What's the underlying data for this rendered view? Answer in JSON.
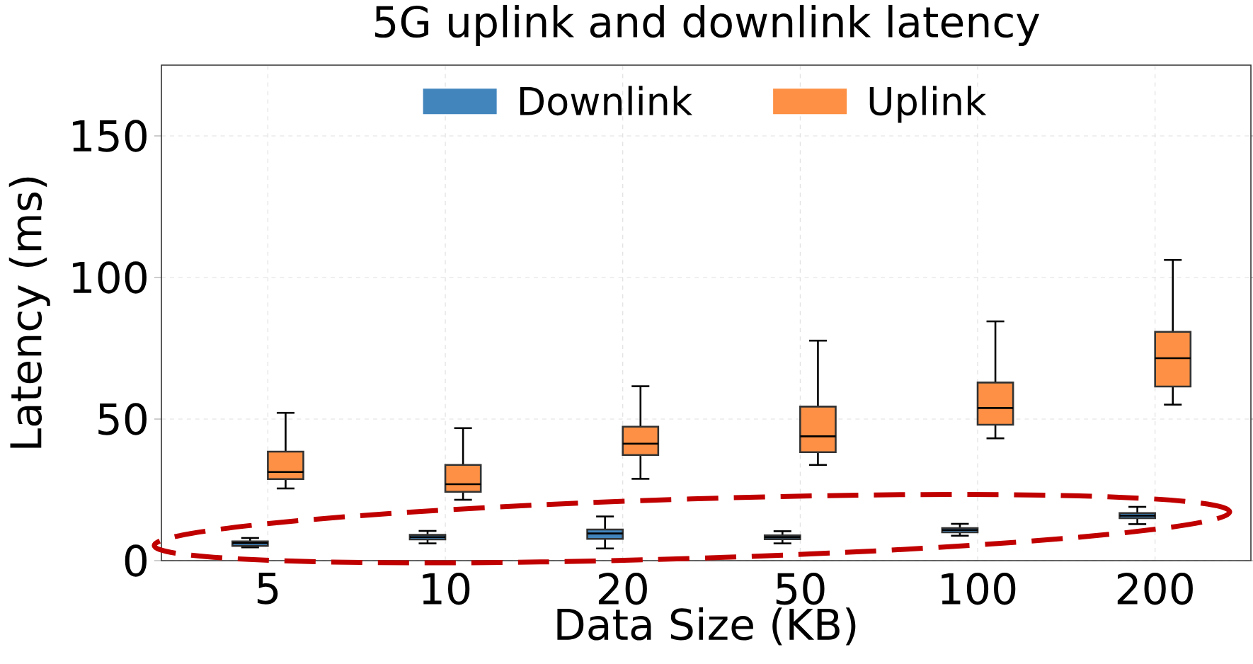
{
  "chart_data": {
    "type": "box",
    "title": "5G uplink and downlink latency",
    "xlabel": "Data Size (KB)",
    "ylabel": "Latency (ms)",
    "categories": [
      "5",
      "10",
      "20",
      "50",
      "100",
      "200"
    ],
    "series": [
      {
        "name": "Downlink",
        "color": "#4285bd",
        "boxes": [
          {
            "low": 4.7,
            "q1": 5.2,
            "median": 6.2,
            "q3": 6.8,
            "high": 8.0
          },
          {
            "low": 6.1,
            "q1": 7.5,
            "median": 8.3,
            "q3": 9.1,
            "high": 10.5
          },
          {
            "low": 4.3,
            "q1": 7.7,
            "median": 9.6,
            "q3": 11.0,
            "high": 15.6
          },
          {
            "low": 6.1,
            "q1": 7.6,
            "median": 8.3,
            "q3": 8.9,
            "high": 10.4
          },
          {
            "low": 8.8,
            "q1": 10.0,
            "median": 10.8,
            "q3": 11.5,
            "high": 13.0
          },
          {
            "low": 12.9,
            "q1": 15.0,
            "median": 15.9,
            "q3": 16.8,
            "high": 19.0
          }
        ]
      },
      {
        "name": "Uplink",
        "color": "#fd9044",
        "boxes": [
          {
            "low": 25.5,
            "q1": 28.8,
            "median": 31.3,
            "q3": 38.5,
            "high": 52.2
          },
          {
            "low": 21.5,
            "q1": 24.3,
            "median": 27.0,
            "q3": 33.8,
            "high": 46.8
          },
          {
            "low": 28.9,
            "q1": 37.3,
            "median": 41.3,
            "q3": 47.3,
            "high": 61.6
          },
          {
            "low": 33.8,
            "q1": 38.3,
            "median": 43.9,
            "q3": 54.4,
            "high": 77.7
          },
          {
            "low": 43.2,
            "q1": 48.0,
            "median": 53.9,
            "q3": 62.9,
            "high": 84.5
          },
          {
            "low": 55.1,
            "q1": 61.5,
            "median": 71.5,
            "q3": 80.8,
            "high": 106.2
          }
        ]
      }
    ],
    "ylim": [
      0,
      175
    ],
    "yticks": [
      0,
      50,
      100,
      150
    ],
    "grid": true,
    "legend": "top"
  }
}
